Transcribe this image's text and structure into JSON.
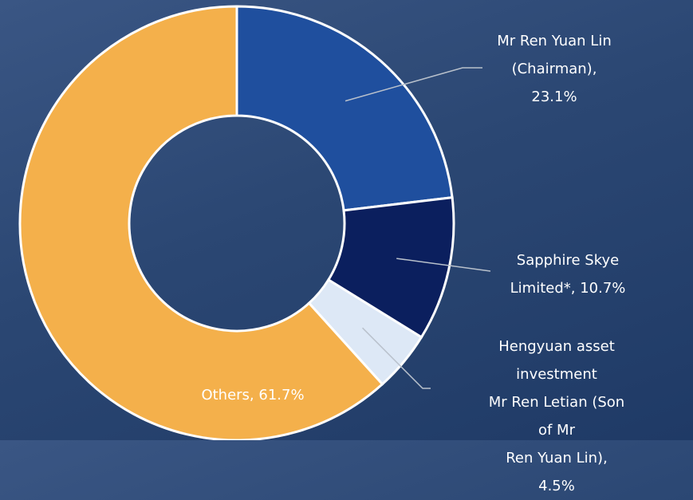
{
  "chart_data": {
    "type": "donut",
    "categories": [
      "Mr Ren Yuan Lin\n(Chairman),\n23.1%",
      "Sapphire Skye\nLimited*, 10.7%",
      "Hengyuan asset\ninvestment\nMr Ren Letian (Son of Mr\nRen Yuan Lin), 4.5%",
      "Others, 61.7%"
    ],
    "values": [
      23.1,
      10.7,
      4.5,
      61.7
    ],
    "colors": [
      "#1f4f9e",
      "#0b1f5e",
      "#dde8f6",
      "#f4b04b"
    ]
  }
}
